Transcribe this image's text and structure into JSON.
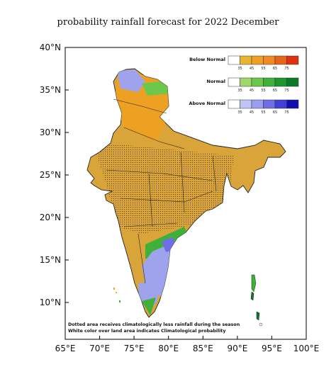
{
  "title": "probability rainfall forecast for 2022 December",
  "axes": {
    "y_ticks": [
      "40°N",
      "35°N",
      "30°N",
      "25°N",
      "20°N",
      "15°N",
      "10°N"
    ],
    "x_ticks": [
      "65°E",
      "70°E",
      "75°E",
      "80°E",
      "85°E",
      "90°E",
      "95°E",
      "100°E"
    ],
    "lon_range": [
      65,
      100
    ],
    "lat_range": [
      5,
      40
    ]
  },
  "legend": [
    {
      "label": "Below Normal",
      "ticks": [
        "35",
        "45",
        "55",
        "65",
        "75"
      ],
      "colors": [
        "#ffffff",
        "#e8b530",
        "#f0a020",
        "#f08a20",
        "#e86418",
        "#e03010"
      ]
    },
    {
      "label": "Normal",
      "ticks": [
        "35",
        "45",
        "55",
        "65",
        "75"
      ],
      "colors": [
        "#ffffff",
        "#9ed868",
        "#6cc84a",
        "#3fb03a",
        "#1e9630",
        "#0a7a28"
      ]
    },
    {
      "label": "Above Normal",
      "ticks": [
        "35",
        "45",
        "55",
        "65",
        "75"
      ],
      "colors": [
        "#ffffff",
        "#c0c4f4",
        "#9a9ef0",
        "#6e6ee6",
        "#4040d8",
        "#1010b0"
      ]
    }
  ],
  "notes": [
    "Dotted area receives climatologically less rainfall during the season",
    "White color over land area indicates Climatological probability"
  ],
  "colors": {
    "below_normal_main": "#d9a53a",
    "below_normal_strong": "#f08a20",
    "normal": "#4cbb3c",
    "above_normal": "#9fa3ee",
    "dots": "#3a2a10"
  }
}
